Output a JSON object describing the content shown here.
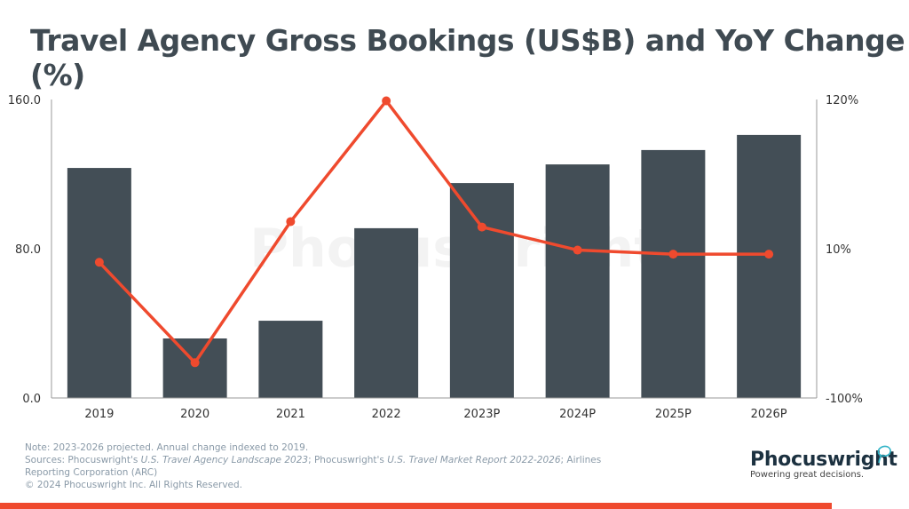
{
  "title": "Travel Agency Gross Bookings (US$B) and YoY Change (%)",
  "chart_data": {
    "type": "bar+line",
    "title": "Travel Agency Gross Bookings (US$B) and YoY Change (%)",
    "categories": [
      "2019",
      "2020",
      "2021",
      "2022",
      "2023P",
      "2024P",
      "2025P",
      "2026P"
    ],
    "series": [
      {
        "name": "Gross Bookings (US$B)",
        "type": "bar",
        "axis": "left",
        "color": "#434e56",
        "values": [
          123.3,
          31.9,
          41.4,
          91.0,
          115.2,
          125.2,
          132.9,
          141.0
        ]
      },
      {
        "name": "YoY Change (%)",
        "type": "line",
        "axis": "right",
        "color": "#ef4a2e",
        "values": [
          0,
          -74,
          30,
          119,
          26,
          9,
          6,
          6
        ]
      }
    ],
    "left_axis": {
      "ylim": [
        0,
        160
      ],
      "ticks": [
        0,
        80,
        160
      ],
      "tick_labels": [
        "0.0",
        "80.0",
        "160.0"
      ]
    },
    "right_axis": {
      "ylim": [
        -100,
        120
      ],
      "ticks": [
        -100,
        10,
        120
      ],
      "tick_labels": [
        "-100%",
        "10%",
        "120%"
      ]
    },
    "grid": false,
    "watermark": "Phocuswright"
  },
  "footer": {
    "note": "Note: 2023-2026 projected. Annual change indexed to 2019.",
    "sources_prefix": "Sources: Phocuswright's ",
    "source1": "U.S. Travel Agency Landscape 2023",
    "sources_mid": "; Phocuswright's ",
    "source2": "U.S. Travel Market Report 2022-2026",
    "sources_suffix": "; Airlines Reporting Corporation (ARC)",
    "copyright": "© 2024 Phocuswright Inc. All Rights Reserved."
  },
  "logo": {
    "name": "Phocuswright",
    "tagline": "Powering great decisions."
  }
}
